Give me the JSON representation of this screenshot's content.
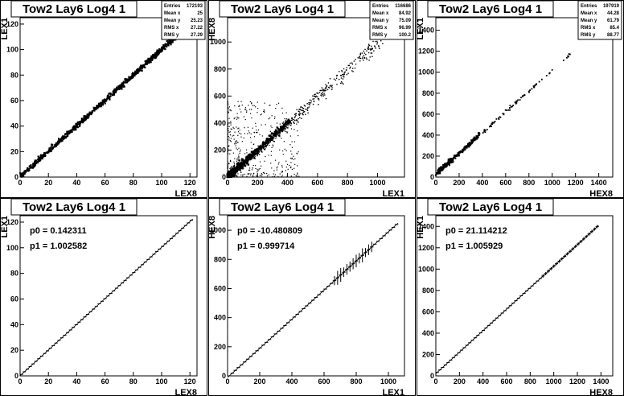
{
  "chart_data": [
    {
      "type": "scatter",
      "title": "Tow2 Lay6 Log4 1",
      "xlabel": "LEX8",
      "ylabel": "LEX1",
      "xlim": [
        0,
        125
      ],
      "ylim": [
        0,
        125
      ],
      "xticks": [
        0,
        20,
        40,
        60,
        80,
        100,
        120
      ],
      "yticks": [
        0,
        20,
        40,
        60,
        80,
        100,
        120
      ],
      "stats": [
        [
          "Entries",
          "172193"
        ],
        [
          "Mean x",
          "25"
        ],
        [
          "Mean y",
          "25.23"
        ],
        [
          "RMS x",
          "27.22"
        ],
        [
          "RMS y",
          "27.29"
        ]
      ],
      "series": [
        {
          "slope": 1.0,
          "intercept": 0.14,
          "x_range": [
            0,
            122
          ]
        }
      ]
    },
    {
      "type": "scatter",
      "title": "Tow2 Lay6 Log4 1",
      "xlabel": "LEX1",
      "ylabel": "HEX8",
      "xlim": [
        0,
        1180
      ],
      "ylim": [
        0,
        1180
      ],
      "xticks": [
        0,
        200,
        400,
        600,
        800,
        1000
      ],
      "yticks": [
        0,
        200,
        400,
        600,
        800,
        1000
      ],
      "stats": [
        [
          "Entries",
          "116686"
        ],
        [
          "Mean x",
          "84.92"
        ],
        [
          "Mean y",
          "75.09"
        ],
        [
          "RMS x",
          "96.99"
        ],
        [
          "RMS y",
          "100.2"
        ]
      ],
      "series": [
        {
          "slope": 1.0,
          "intercept": -10.5,
          "x_range": [
            0,
            1060
          ]
        }
      ]
    },
    {
      "type": "scatter",
      "title": "Tow2 Lay6 Log4 1",
      "xlabel": "HEX8",
      "ylabel": "LEX1",
      "xlim": [
        0,
        1520
      ],
      "ylim": [
        0,
        1520
      ],
      "xticks": [
        0,
        200,
        400,
        600,
        800,
        1000,
        1200,
        1400
      ],
      "yticks": [
        0,
        200,
        400,
        600,
        800,
        1000,
        1200,
        1400
      ],
      "stats": [
        [
          "Entries",
          "197919"
        ],
        [
          "Mean x",
          "44.28"
        ],
        [
          "Mean y",
          "61.79"
        ],
        [
          "RMS x",
          "85.4"
        ],
        [
          "RMS y",
          "88.77"
        ]
      ],
      "series": [
        {
          "slope": 1.0,
          "intercept": 21.1,
          "x_range": [
            0,
            1180
          ]
        }
      ]
    },
    {
      "type": "line",
      "title": "Tow2 Lay6 Log4 1",
      "xlabel": "LEX8",
      "ylabel": "LEX1",
      "xlim": [
        0,
        125
      ],
      "ylim": [
        0,
        125
      ],
      "xticks": [
        0,
        20,
        40,
        60,
        80,
        100,
        120
      ],
      "yticks": [
        0,
        20,
        40,
        60,
        80,
        100,
        120
      ],
      "fit_params": [
        "p0 = 0.142311",
        "p1 = 1.002582"
      ],
      "series": [
        {
          "p0": 0.142311,
          "p1": 1.002582,
          "x_range": [
            0,
            122
          ]
        }
      ]
    },
    {
      "type": "line",
      "title": "Tow2 Lay6 Log4 1",
      "xlabel": "LEX1",
      "ylabel": "HEX8",
      "xlim": [
        0,
        1100
      ],
      "ylim": [
        0,
        1100
      ],
      "xticks": [
        0,
        200,
        400,
        600,
        800,
        1000
      ],
      "yticks": [
        0,
        200,
        400,
        600,
        800,
        1000
      ],
      "fit_params": [
        "p0 = -10.480809",
        "p1 = 0.999714"
      ],
      "series": [
        {
          "p0": -10.480809,
          "p1": 0.999714,
          "x_range": [
            0,
            1060
          ]
        }
      ]
    },
    {
      "type": "line",
      "title": "Tow2 Lay6 Log4 1",
      "xlabel": "HEX8",
      "ylabel": "HEX1",
      "xlim": [
        0,
        1500
      ],
      "ylim": [
        0,
        1500
      ],
      "xticks": [
        0,
        200,
        400,
        600,
        800,
        1000,
        1200,
        1400
      ],
      "yticks": [
        0,
        200,
        400,
        600,
        800,
        1000,
        1200,
        1400
      ],
      "fit_params": [
        "p0 = 21.114212",
        "p1 = 1.005929"
      ],
      "series": [
        {
          "p0": 21.114212,
          "p1": 1.005929,
          "x_range": [
            0,
            1380
          ]
        }
      ]
    }
  ]
}
